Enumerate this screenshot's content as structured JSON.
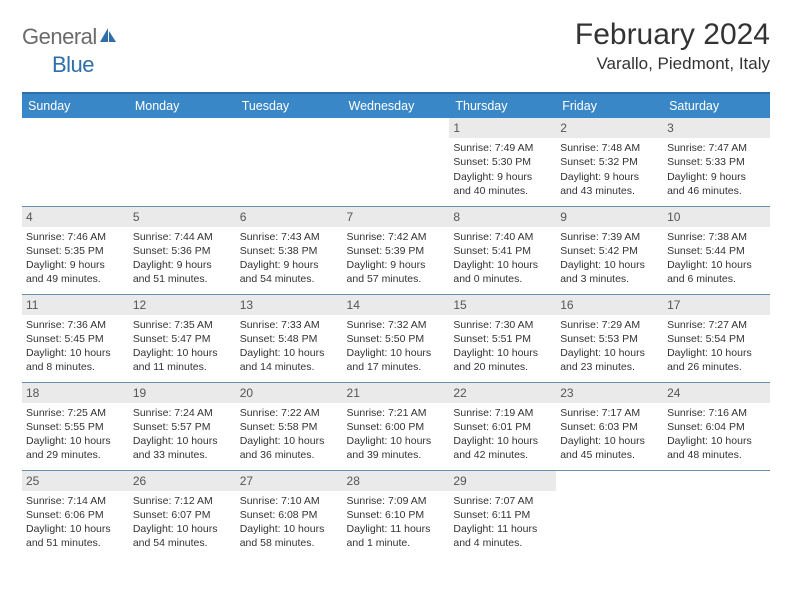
{
  "logo": {
    "general": "General",
    "blue": "Blue"
  },
  "title": "February 2024",
  "location": "Varallo, Piedmont, Italy",
  "colors": {
    "header_bg": "#3a87c8",
    "header_border": "#2f6fa9",
    "row_border": "#6b8fad",
    "daynum_bg": "#eaeaea",
    "text": "#333333",
    "logo_gray": "#6b6b6b",
    "logo_blue": "#2f6fa9"
  },
  "weekdays": [
    "Sunday",
    "Monday",
    "Tuesday",
    "Wednesday",
    "Thursday",
    "Friday",
    "Saturday"
  ],
  "first_weekday_index": 4,
  "days": [
    {
      "n": 1,
      "sr": "7:49 AM",
      "ss": "5:30 PM",
      "dl": "9 hours and 40 minutes."
    },
    {
      "n": 2,
      "sr": "7:48 AM",
      "ss": "5:32 PM",
      "dl": "9 hours and 43 minutes."
    },
    {
      "n": 3,
      "sr": "7:47 AM",
      "ss": "5:33 PM",
      "dl": "9 hours and 46 minutes."
    },
    {
      "n": 4,
      "sr": "7:46 AM",
      "ss": "5:35 PM",
      "dl": "9 hours and 49 minutes."
    },
    {
      "n": 5,
      "sr": "7:44 AM",
      "ss": "5:36 PM",
      "dl": "9 hours and 51 minutes."
    },
    {
      "n": 6,
      "sr": "7:43 AM",
      "ss": "5:38 PM",
      "dl": "9 hours and 54 minutes."
    },
    {
      "n": 7,
      "sr": "7:42 AM",
      "ss": "5:39 PM",
      "dl": "9 hours and 57 minutes."
    },
    {
      "n": 8,
      "sr": "7:40 AM",
      "ss": "5:41 PM",
      "dl": "10 hours and 0 minutes."
    },
    {
      "n": 9,
      "sr": "7:39 AM",
      "ss": "5:42 PM",
      "dl": "10 hours and 3 minutes."
    },
    {
      "n": 10,
      "sr": "7:38 AM",
      "ss": "5:44 PM",
      "dl": "10 hours and 6 minutes."
    },
    {
      "n": 11,
      "sr": "7:36 AM",
      "ss": "5:45 PM",
      "dl": "10 hours and 8 minutes."
    },
    {
      "n": 12,
      "sr": "7:35 AM",
      "ss": "5:47 PM",
      "dl": "10 hours and 11 minutes."
    },
    {
      "n": 13,
      "sr": "7:33 AM",
      "ss": "5:48 PM",
      "dl": "10 hours and 14 minutes."
    },
    {
      "n": 14,
      "sr": "7:32 AM",
      "ss": "5:50 PM",
      "dl": "10 hours and 17 minutes."
    },
    {
      "n": 15,
      "sr": "7:30 AM",
      "ss": "5:51 PM",
      "dl": "10 hours and 20 minutes."
    },
    {
      "n": 16,
      "sr": "7:29 AM",
      "ss": "5:53 PM",
      "dl": "10 hours and 23 minutes."
    },
    {
      "n": 17,
      "sr": "7:27 AM",
      "ss": "5:54 PM",
      "dl": "10 hours and 26 minutes."
    },
    {
      "n": 18,
      "sr": "7:25 AM",
      "ss": "5:55 PM",
      "dl": "10 hours and 29 minutes."
    },
    {
      "n": 19,
      "sr": "7:24 AM",
      "ss": "5:57 PM",
      "dl": "10 hours and 33 minutes."
    },
    {
      "n": 20,
      "sr": "7:22 AM",
      "ss": "5:58 PM",
      "dl": "10 hours and 36 minutes."
    },
    {
      "n": 21,
      "sr": "7:21 AM",
      "ss": "6:00 PM",
      "dl": "10 hours and 39 minutes."
    },
    {
      "n": 22,
      "sr": "7:19 AM",
      "ss": "6:01 PM",
      "dl": "10 hours and 42 minutes."
    },
    {
      "n": 23,
      "sr": "7:17 AM",
      "ss": "6:03 PM",
      "dl": "10 hours and 45 minutes."
    },
    {
      "n": 24,
      "sr": "7:16 AM",
      "ss": "6:04 PM",
      "dl": "10 hours and 48 minutes."
    },
    {
      "n": 25,
      "sr": "7:14 AM",
      "ss": "6:06 PM",
      "dl": "10 hours and 51 minutes."
    },
    {
      "n": 26,
      "sr": "7:12 AM",
      "ss": "6:07 PM",
      "dl": "10 hours and 54 minutes."
    },
    {
      "n": 27,
      "sr": "7:10 AM",
      "ss": "6:08 PM",
      "dl": "10 hours and 58 minutes."
    },
    {
      "n": 28,
      "sr": "7:09 AM",
      "ss": "6:10 PM",
      "dl": "11 hours and 1 minute."
    },
    {
      "n": 29,
      "sr": "7:07 AM",
      "ss": "6:11 PM",
      "dl": "11 hours and 4 minutes."
    }
  ],
  "labels": {
    "sunrise": "Sunrise:",
    "sunset": "Sunset:",
    "daylight": "Daylight:"
  }
}
